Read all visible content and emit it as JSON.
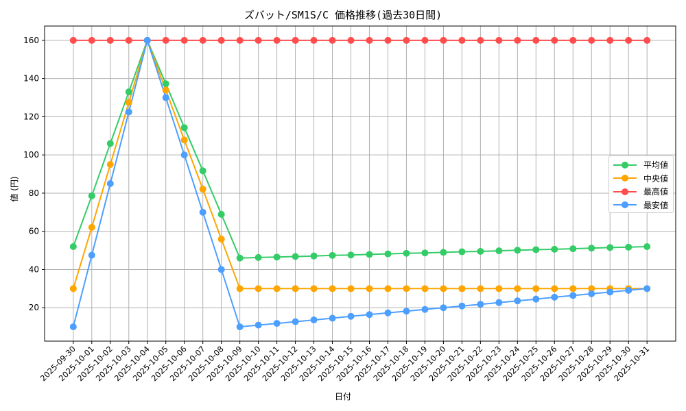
{
  "chart_data": {
    "type": "line",
    "title": "ズバット/SM1S/C 価格推移(過去30日間)",
    "xlabel": "日付",
    "ylabel": "値 (円)",
    "x": [
      "2025-09-30",
      "2025-10-01",
      "2025-10-02",
      "2025-10-03",
      "2025-10-04",
      "2025-10-05",
      "2025-10-06",
      "2025-10-07",
      "2025-10-08",
      "2025-10-09",
      "2025-10-10",
      "2025-10-11",
      "2025-10-12",
      "2025-10-13",
      "2025-10-14",
      "2025-10-15",
      "2025-10-16",
      "2025-10-17",
      "2025-10-18",
      "2025-10-19",
      "2025-10-20",
      "2025-10-21",
      "2025-10-22",
      "2025-10-23",
      "2025-10-24",
      "2025-10-25",
      "2025-10-26",
      "2025-10-27",
      "2025-10-28",
      "2025-10-29",
      "2025-10-30",
      "2025-10-31"
    ],
    "series": [
      {
        "name": "平均値",
        "color": "#33cc66",
        "values": [
          52,
          78.6,
          106,
          133,
          160,
          137.3,
          114.3,
          91.7,
          68.9,
          46.0,
          46.3,
          46.5,
          46.8,
          47.1,
          47.4,
          47.6,
          47.9,
          48.2,
          48.5,
          48.7,
          49.0,
          49.3,
          49.5,
          49.8,
          50.1,
          50.4,
          50.6,
          50.9,
          51.2,
          51.5,
          51.7,
          52.0
        ]
      },
      {
        "name": "中央値",
        "color": "#ffa500",
        "values": [
          30,
          62.1,
          95,
          127.5,
          160,
          134,
          107.8,
          82.1,
          55.9,
          30,
          30,
          30,
          30,
          30,
          30,
          30,
          30,
          30,
          30,
          30,
          30,
          30,
          30,
          30,
          30,
          30,
          30,
          30,
          30,
          30,
          30,
          30
        ]
      },
      {
        "name": "最高値",
        "color": "#ff4d4d",
        "values": [
          160,
          160,
          160,
          160,
          160,
          160,
          160,
          160,
          160,
          160,
          160,
          160,
          160,
          160,
          160,
          160,
          160,
          160,
          160,
          160,
          160,
          160,
          160,
          160,
          160,
          160,
          160,
          160,
          160,
          160,
          160,
          160
        ]
      },
      {
        "name": "最安値",
        "color": "#4d9fff",
        "values": [
          10,
          47.5,
          85,
          122.5,
          160,
          130,
          100,
          70,
          40,
          10.0,
          10.9,
          11.8,
          12.7,
          13.6,
          14.5,
          15.5,
          16.4,
          17.3,
          18.2,
          19.1,
          20.0,
          20.9,
          21.8,
          22.7,
          23.6,
          24.5,
          25.5,
          26.4,
          27.3,
          28.2,
          29.1,
          30.0
        ]
      }
    ],
    "yticks": [
      20,
      40,
      60,
      80,
      100,
      120,
      140,
      160
    ],
    "ylim": [
      2.5,
      167.5
    ],
    "xlim_index": [
      -1.55,
      32.55
    ],
    "grid": true,
    "legend_position": "center right"
  }
}
